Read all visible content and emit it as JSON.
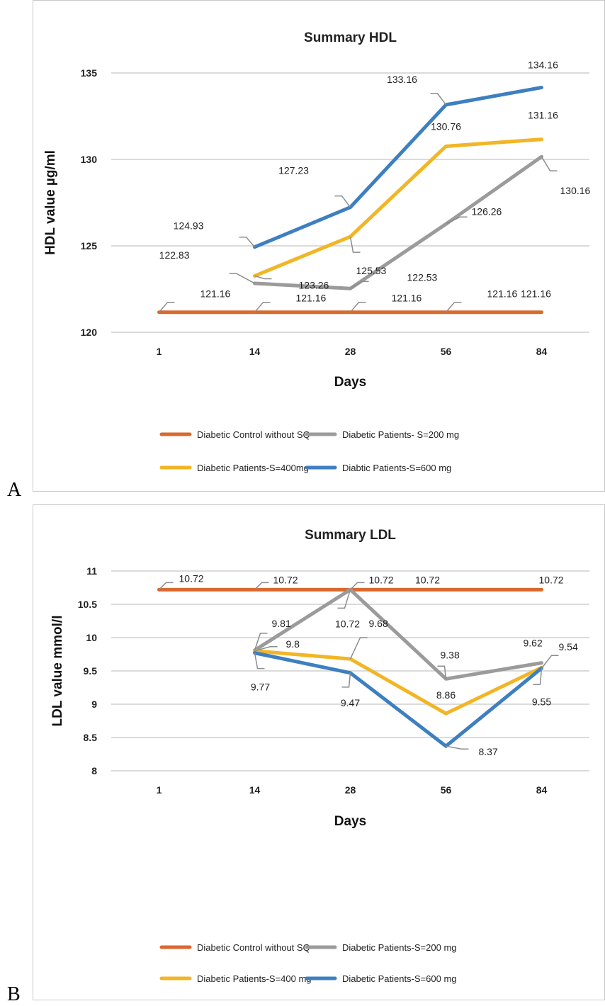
{
  "panels": [
    {
      "letter": "A"
    },
    {
      "letter": "B"
    }
  ],
  "chart_data": [
    {
      "type": "line",
      "title": "Summary HDL",
      "xlabel": "Days",
      "ylabel": "HDL value µg/ml",
      "categories": [
        "1",
        "14",
        "28",
        "56",
        "84"
      ],
      "ylim": [
        120,
        135
      ],
      "yticks": [
        120,
        125,
        130,
        135
      ],
      "grid": true,
      "legend": "bottom",
      "series": [
        {
          "name": "Diabetic Control without SQ",
          "color": "#d9692d",
          "values": [
            121.16,
            121.16,
            121.16,
            121.16,
            121.16
          ],
          "labels": [
            "121.16",
            "121.16",
            "121.16",
            "121.16",
            "121.16"
          ]
        },
        {
          "name": "Diabetic Patients- S=200 mg",
          "color": "#9b9b9b",
          "values": [
            null,
            122.83,
            122.53,
            126.26,
            130.16
          ],
          "labels": [
            null,
            "122.83",
            "122.53",
            "126.26",
            "130.16"
          ]
        },
        {
          "name": "Diabetic Patients-S=400mg",
          "color": "#f2b625",
          "values": [
            null,
            123.26,
            125.53,
            130.76,
            131.16
          ],
          "labels": [
            null,
            "123.26",
            "125.53",
            "130.76",
            "131.16"
          ]
        },
        {
          "name": "Diabtic Patients-S=600 mg",
          "color": "#3d7fc1",
          "values": [
            null,
            124.93,
            127.23,
            133.16,
            134.16
          ],
          "labels": [
            null,
            "124.93",
            "127.23",
            "133.16",
            "134.16"
          ]
        }
      ]
    },
    {
      "type": "line",
      "title": "Summary LDL",
      "xlabel": "Days",
      "ylabel": "LDL value mmol/l",
      "categories": [
        "1",
        "14",
        "28",
        "56",
        "84"
      ],
      "ylim": [
        8,
        11
      ],
      "yticks": [
        8,
        8.5,
        9,
        9.5,
        10,
        10.5,
        11
      ],
      "grid": true,
      "legend": "bottom",
      "series": [
        {
          "name": "Diabetic Control without SQ",
          "color": "#d9692d",
          "values": [
            10.72,
            10.72,
            10.72,
            10.72,
            10.72
          ],
          "labels": [
            "10.72",
            "10.72",
            "10.72",
            "10.72",
            "10.72"
          ]
        },
        {
          "name": "Diabetic Patients-S=200 mg",
          "color": "#9b9b9b",
          "values": [
            null,
            9.81,
            10.72,
            9.38,
            9.62
          ],
          "labels": [
            null,
            "9.81",
            "10.72",
            "9.38",
            "9.62"
          ]
        },
        {
          "name": "Diabetic Patients-S=400 mg",
          "color": "#f2b625",
          "values": [
            null,
            9.8,
            9.68,
            8.86,
            9.55
          ],
          "labels": [
            null,
            "9.8",
            "9.68",
            "8.86",
            "9.55"
          ]
        },
        {
          "name": "Diabetic Patients-S=600 mg",
          "color": "#3d7fc1",
          "values": [
            null,
            9.77,
            9.47,
            8.37,
            9.54
          ],
          "labels": [
            null,
            "9.77",
            "9.47",
            "8.37",
            "9.54"
          ]
        }
      ]
    }
  ]
}
